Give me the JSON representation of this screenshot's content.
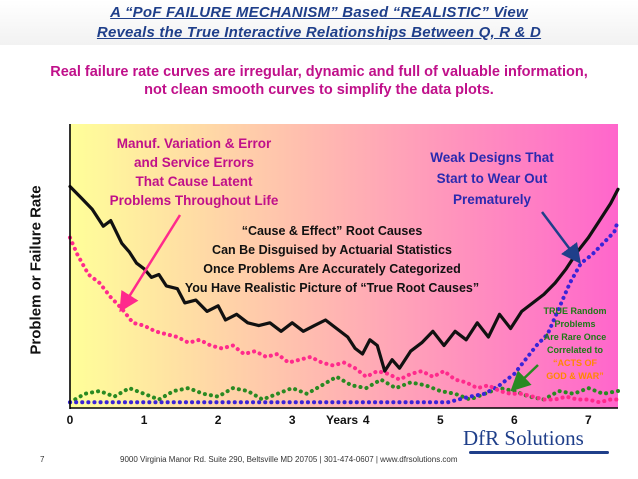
{
  "slide": {
    "title_line1": "A “PoF FAILURE MECHANISM” Based “REALISTIC” View",
    "title_line2": "Reveals the True Interactive Relationships Between Q, R & D",
    "subtitle_line1": "Real failure rate curves are irregular, dynamic and full of valuable information,",
    "subtitle_line2": "not clean smooth curves to simplify the data plots.",
    "page_number": "7",
    "footer": "9000 Virginia Manor Rd. Suite 290, Beltsville MD 20705 | 301-474-0607 | www.dfrsolutions.com",
    "logo_text": "DfR Solutions"
  },
  "colors": {
    "title": "#1f3f8a",
    "subtitle": "#c0108a",
    "black_curve": "#111111",
    "pink_curve": "#ff2a8c",
    "blue_curve": "#3a24d8",
    "green_curve": "#2a8a22",
    "bg_left": "#ffff99",
    "bg_right": "#ff66cc"
  },
  "annotations": {
    "manuf": [
      "Manuf. Variation & Error",
      "and Service Errors",
      "That Cause Latent",
      "Problems Throughout Life"
    ],
    "weak": [
      "Weak Designs That",
      "Start to Wear Out",
      "Prematurely"
    ],
    "cause": [
      "“Cause & Effect” Root Causes",
      "Can Be Disguised by Actuarial Statistics",
      "Once Problems Are Accurately Categorized",
      "You Have Realistic Picture of “True Root Causes”"
    ],
    "random_green": [
      "TRUE Random",
      "Problems",
      "Are Rare Once",
      "Correlated to"
    ],
    "random_orange": [
      "“ACTS OF",
      "GOD & WAR”"
    ]
  },
  "chart_data": {
    "type": "line",
    "title": "",
    "xlabel": "Years",
    "ylabel": "Problem or Failure Rate",
    "xlim": [
      0,
      7.4
    ],
    "ylim": [
      0,
      100
    ],
    "x_ticks": [
      "0",
      "1",
      "2",
      "3",
      "4",
      "5",
      "6",
      "7"
    ],
    "grid": false,
    "series": [
      {
        "color": "black",
        "style": "solid",
        "x": [
          0,
          0.15,
          0.3,
          0.45,
          0.55,
          0.7,
          0.8,
          0.9,
          1.0,
          1.1,
          1.2,
          1.3,
          1.45,
          1.55,
          1.7,
          1.85,
          2.0,
          2.1,
          2.25,
          2.4,
          2.55,
          2.7,
          2.85,
          3.0,
          3.15,
          3.3,
          3.45,
          3.6,
          3.75,
          3.85,
          3.95,
          4.05,
          4.15,
          4.25,
          4.35,
          4.45,
          4.6,
          4.75,
          4.9,
          5.05,
          5.2,
          5.35,
          5.5,
          5.65,
          5.8,
          5.95,
          6.1,
          6.25,
          6.4,
          6.55,
          6.7,
          6.85,
          7.0,
          7.15,
          7.3,
          7.4
        ],
        "y": [
          78,
          74,
          70,
          64,
          66,
          58,
          55,
          51,
          49,
          46,
          47,
          43,
          42,
          37,
          38,
          34,
          36,
          31,
          33,
          30,
          29,
          30,
          27,
          30,
          27,
          29,
          31,
          28,
          25,
          21,
          19,
          24,
          22,
          13,
          17,
          14,
          20,
          23,
          27,
          22,
          27,
          24,
          30,
          25,
          33,
          28,
          34,
          37,
          40,
          44,
          49,
          55,
          60,
          66,
          72,
          77
        ]
      },
      {
        "color": "pink",
        "style": "dotted",
        "x": [
          0,
          0.1,
          0.25,
          0.4,
          0.55,
          0.7,
          0.85,
          1.0,
          1.15,
          1.3,
          1.45,
          1.6,
          1.75,
          1.9,
          2.05,
          2.2,
          2.35,
          2.5,
          2.65,
          2.8,
          2.95,
          3.1,
          3.25,
          3.4,
          3.55,
          3.7,
          3.85,
          4.0,
          4.15,
          4.3,
          4.45,
          4.6,
          4.75,
          4.9,
          5.05,
          5.2,
          5.35,
          5.5,
          5.65,
          5.8,
          5.95,
          6.1,
          6.25,
          6.4,
          6.55,
          6.7,
          6.85,
          7.0,
          7.15,
          7.3,
          7.4
        ],
        "y": [
          60,
          54,
          47,
          44,
          39,
          35,
          30,
          29,
          27,
          26,
          25,
          23,
          24,
          22,
          21,
          22,
          19,
          20,
          18,
          19,
          16,
          17,
          18,
          16,
          15,
          16,
          14,
          11,
          13,
          12,
          10,
          12,
          13,
          11,
          13,
          10,
          9,
          7,
          8,
          6,
          5,
          5,
          4,
          3,
          3,
          4,
          3,
          3,
          2,
          3,
          3
        ]
      },
      {
        "color": "blue",
        "style": "dotted",
        "x": [
          0,
          0.3,
          0.6,
          0.9,
          1.2,
          1.5,
          1.8,
          2.1,
          2.4,
          2.7,
          3.0,
          3.3,
          3.6,
          3.9,
          4.2,
          4.5,
          4.8,
          5.1,
          5.4,
          5.6,
          5.8,
          6.0,
          6.15,
          6.3,
          6.45,
          6.6,
          6.75,
          6.9,
          7.05,
          7.2,
          7.35,
          7.4
        ],
        "y": [
          2,
          2,
          2,
          2,
          2,
          2,
          2,
          2,
          2,
          2,
          2,
          2,
          2,
          2,
          2,
          2,
          2,
          2,
          4,
          5,
          8,
          12,
          17,
          22,
          26,
          35,
          44,
          51,
          54,
          58,
          62,
          66
        ]
      },
      {
        "color": "green",
        "style": "dotted",
        "x": [
          0,
          0.2,
          0.4,
          0.6,
          0.8,
          1.0,
          1.2,
          1.4,
          1.6,
          1.8,
          2.0,
          2.2,
          2.4,
          2.6,
          2.8,
          3.0,
          3.2,
          3.4,
          3.6,
          3.8,
          4.0,
          4.2,
          4.4,
          4.6,
          4.8,
          5.0,
          5.2,
          5.4,
          5.6,
          5.8,
          6.0,
          6.2,
          6.4,
          6.6,
          6.8,
          7.0,
          7.2,
          7.4
        ],
        "y": [
          2,
          5,
          6,
          4,
          7,
          5,
          3,
          6,
          7,
          5,
          4,
          7,
          6,
          3,
          5,
          7,
          5,
          8,
          11,
          8,
          7,
          10,
          7,
          9,
          8,
          6,
          5,
          3,
          5,
          7,
          6,
          4,
          3,
          6,
          5,
          7,
          5,
          6
        ]
      }
    ]
  }
}
